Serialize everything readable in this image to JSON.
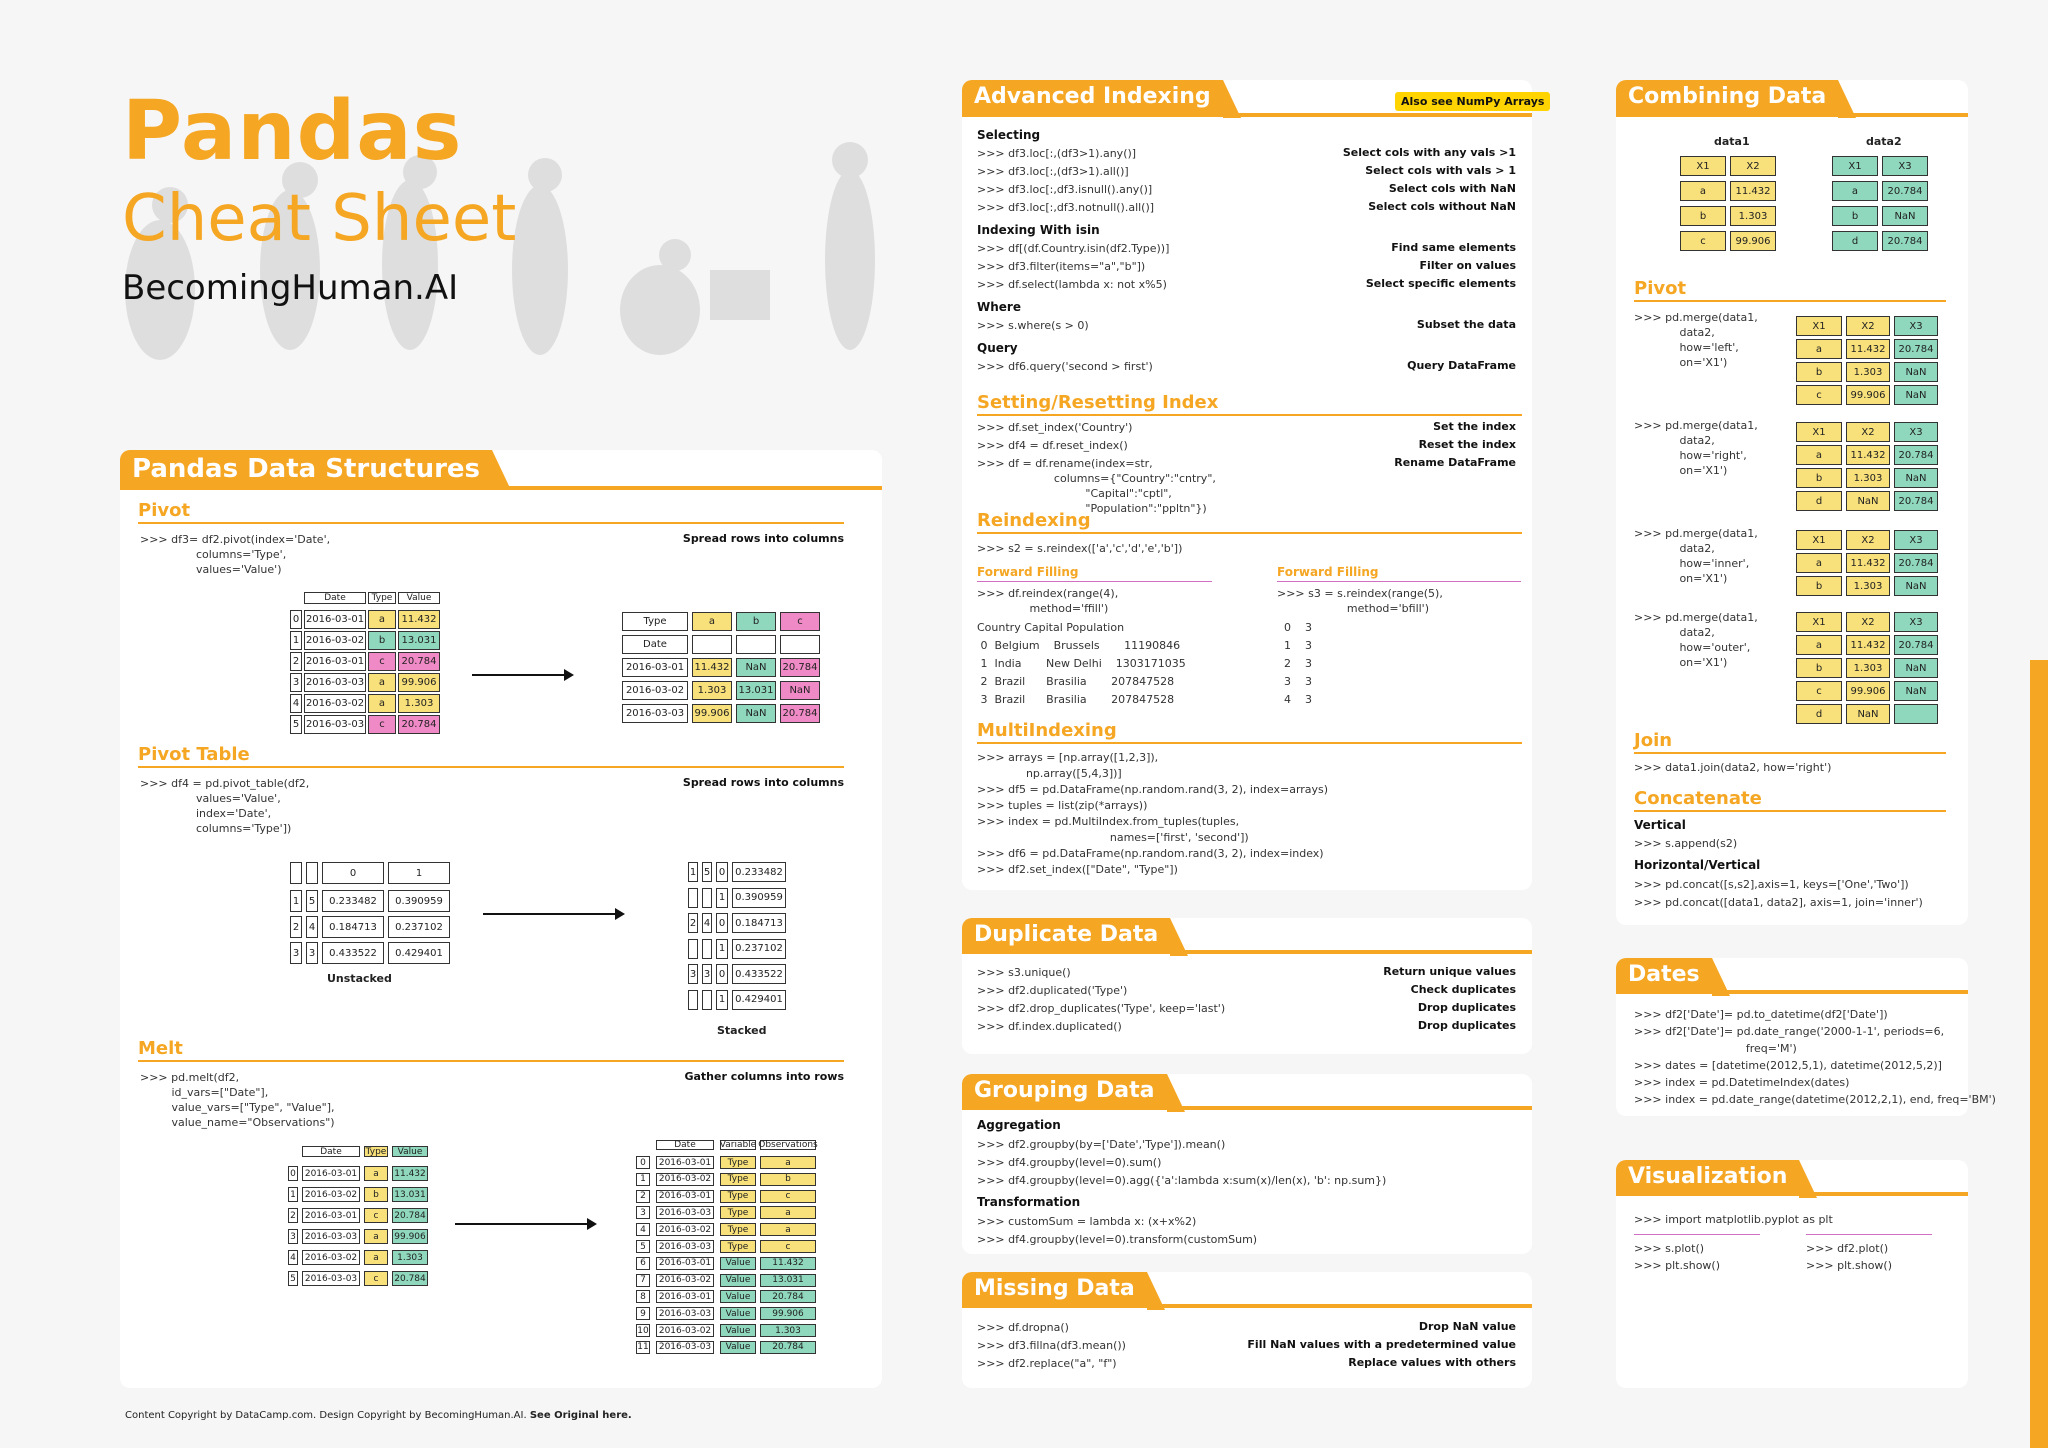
{
  "header": {
    "title": "Pandas",
    "subtitle": "Cheat Sheet",
    "brand": "BecomingHuman.AI"
  },
  "footer": {
    "text": "Content Copyright by DataCamp.com. Design Copyright by BecomingHuman.AI.",
    "link": "See Original here."
  },
  "data_structures": {
    "title": "Pandas Data Structures",
    "pivot": {
      "title": "Pivot",
      "code": ">>> df3= df2.pivot(index='Date',\n                columns='Type',\n                values='Value')",
      "desc": "Spread rows into columns",
      "left_headers": [
        "Date",
        "Type",
        "Value"
      ],
      "left_rows": [
        [
          "0",
          "2016-03-01",
          "a",
          "11.432"
        ],
        [
          "1",
          "2016-03-02",
          "b",
          "13.031"
        ],
        [
          "2",
          "2016-03-01",
          "c",
          "20.784"
        ],
        [
          "3",
          "2016-03-03",
          "a",
          "99.906"
        ],
        [
          "4",
          "2016-03-02",
          "a",
          "1.303"
        ],
        [
          "5",
          "2016-03-03",
          "c",
          "20.784"
        ]
      ],
      "right_header": [
        "Type",
        "a",
        "b",
        "c"
      ],
      "right_date": "Date",
      "right_rows": [
        [
          "2016-03-01",
          "11.432",
          "NaN",
          "20.784"
        ],
        [
          "2016-03-02",
          "1.303",
          "13.031",
          "NaN"
        ],
        [
          "2016-03-03",
          "99.906",
          "NaN",
          "20.784"
        ]
      ]
    },
    "pivot_table": {
      "title": "Pivot Table",
      "code": ">>> df4 = pd.pivot_table(df2,\n                values='Value',\n                index='Date',\n                columns='Type'])",
      "desc": "Spread rows into columns",
      "left_cols": [
        "0",
        "1"
      ],
      "left_rows": [
        [
          "1",
          "5",
          "0.233482",
          "0.390959"
        ],
        [
          "2",
          "4",
          "0.184713",
          "0.237102"
        ],
        [
          "3",
          "3",
          "0.433522",
          "0.429401"
        ]
      ],
      "left_caption": "Unstacked",
      "right_rows": [
        [
          "1",
          "5",
          "0",
          "0.233482"
        ],
        [
          "",
          "",
          "1",
          "0.390959"
        ],
        [
          "2",
          "4",
          "0",
          "0.184713"
        ],
        [
          "",
          "",
          "1",
          "0.237102"
        ],
        [
          "3",
          "3",
          "0",
          "0.433522"
        ],
        [
          "",
          "",
          "1",
          "0.429401"
        ]
      ],
      "right_caption": "Stacked"
    },
    "melt": {
      "title": "Melt",
      "code": ">>> pd.melt(df2,\n         id_vars=[\"Date\"],\n         value_vars=[\"Type\", \"Value\"],\n         value_name=\"Observations\")",
      "desc": "Gather columns into rows",
      "left_headers": [
        "Date",
        "Type",
        "Value"
      ],
      "left_rows": [
        [
          "0",
          "2016-03-01",
          "a",
          "11.432"
        ],
        [
          "1",
          "2016-03-02",
          "b",
          "13.031"
        ],
        [
          "2",
          "2016-03-01",
          "c",
          "20.784"
        ],
        [
          "3",
          "2016-03-03",
          "a",
          "99.906"
        ],
        [
          "4",
          "2016-03-02",
          "a",
          "1.303"
        ],
        [
          "5",
          "2016-03-03",
          "c",
          "20.784"
        ]
      ],
      "right_headers": [
        "Date",
        "Variable",
        "Observations"
      ],
      "right_rows": [
        [
          "0",
          "2016-03-01",
          "Type",
          "a"
        ],
        [
          "1",
          "2016-03-02",
          "Type",
          "b"
        ],
        [
          "2",
          "2016-03-01",
          "Type",
          "c"
        ],
        [
          "3",
          "2016-03-03",
          "Type",
          "a"
        ],
        [
          "4",
          "2016-03-02",
          "Type",
          "a"
        ],
        [
          "5",
          "2016-03-03",
          "Type",
          "c"
        ],
        [
          "6",
          "2016-03-01",
          "Value",
          "11.432"
        ],
        [
          "7",
          "2016-03-02",
          "Value",
          "13.031"
        ],
        [
          "8",
          "2016-03-01",
          "Value",
          "20.784"
        ],
        [
          "9",
          "2016-03-03",
          "Value",
          "99.906"
        ],
        [
          "10",
          "2016-03-02",
          "Value",
          "1.303"
        ],
        [
          "11",
          "2016-03-03",
          "Value",
          "20.784"
        ]
      ]
    }
  },
  "advanced_indexing": {
    "title": "Advanced Indexing",
    "badge": "Also see NumPy Arrays",
    "selecting": "Selecting",
    "sel_rows": [
      [
        ">>> df3.loc[:,(df3>1).any()]",
        "Select cols with any vals >1"
      ],
      [
        ">>> df3.loc[:,(df3>1).all()]",
        "Select cols with vals > 1"
      ],
      [
        ">>> df3.loc[:,df3.isnull().any()]",
        "Select cols with NaN"
      ],
      [
        ">>> df3.loc[:,df3.notnull().all()]",
        "Select cols without NaN"
      ]
    ],
    "isin": "Indexing With isin",
    "isin_rows": [
      [
        ">>> df[(df.Country.isin(df2.Type))]",
        "Find same elements"
      ],
      [
        ">>> df3.filter(items=\"a\",\"b\"])",
        "Filter on values"
      ],
      [
        ">>> df.select(lambda x: not x%5)",
        "Select specific elements"
      ]
    ],
    "where": "Where",
    "where_rows": [
      [
        ">>> s.where(s > 0)",
        "Subset the data"
      ]
    ],
    "query": "Query",
    "query_rows": [
      [
        ">>> df6.query('second > first')",
        "Query DataFrame"
      ]
    ],
    "setreset": "Setting/Resetting Index",
    "set_rows": [
      [
        ">>> df.set_index('Country')",
        "Set the index"
      ],
      [
        ">>> df4 = df.reset_index()",
        "Reset the index"
      ],
      [
        ">>> df = df.rename(index=str,\n                      columns={\"Country\":\"cntry\",\n                               \"Capital\":\"cptl\",\n                               \"Population\":\"ppltn\"})",
        "Rename DataFrame"
      ]
    ],
    "reindexing": "Reindexing",
    "reindex_code": ">>> s2 = s.reindex(['a','c','d','e','b'])",
    "ff1": "Forward Filling",
    "ff1_code": ">>> df.reindex(range(4),\n               method='ffill')",
    "ff1_table": "Country Capital Population\n 0  Belgium    Brussels       11190846\n 1  India       New Delhi    1303171035\n 2  Brazil      Brasilia       207847528\n 3  Brazil      Brasilia       207847528",
    "ff2": "Forward Filling",
    "ff2_code": ">>> s3 = s.reindex(range(5),\n                    method='bfill')",
    "ff2_table": "  0    3\n  1    3\n  2    3\n  3    3\n  4    3",
    "multiindexing": "MultiIndexing",
    "multi_code": ">>> arrays = [np.array([1,2,3]),\n              np.array([5,4,3])]\n>>> df5 = pd.DataFrame(np.random.rand(3, 2), index=arrays)\n>>> tuples = list(zip(*arrays))\n>>> index = pd.MultiIndex.from_tuples(tuples,\n                                      names=['first', 'second'])\n>>> df6 = pd.DataFrame(np.random.rand(3, 2), index=index)\n>>> df2.set_index([\"Date\", \"Type\"])"
  },
  "duplicate": {
    "title": "Duplicate Data",
    "rows": [
      [
        ">>> s3.unique()",
        "Return unique values"
      ],
      [
        ">>> df2.duplicated('Type')",
        "Check duplicates"
      ],
      [
        ">>> df2.drop_duplicates('Type', keep='last')",
        "Drop duplicates"
      ],
      [
        ">>> df.index.duplicated()",
        "Drop duplicates"
      ]
    ]
  },
  "grouping": {
    "title": "Grouping Data",
    "agg": "Aggregation",
    "agg_code": ">>> df2.groupby(by=['Date','Type']).mean()\n>>> df4.groupby(level=0).sum()\n>>> df4.groupby(level=0).agg({'a':lambda x:sum(x)/len(x), 'b': np.sum})",
    "trans": "Transformation",
    "trans_code": ">>> customSum = lambda x: (x+x%2)\n>>> df4.groupby(level=0).transform(customSum)"
  },
  "missing": {
    "title": "Missing Data",
    "rows": [
      [
        ">>> df.dropna()",
        "Drop NaN value"
      ],
      [
        ">>> df3.fillna(df3.mean())",
        "Fill NaN values with a predetermined value"
      ],
      [
        ">>> df2.replace(\"a\", \"f\")",
        "Replace values with others"
      ]
    ]
  },
  "combining": {
    "title": "Combining Data",
    "data1": "data1",
    "data2": "data2",
    "d1_head": [
      "X1",
      "X2"
    ],
    "d1_rows": [
      [
        "a",
        "11.432"
      ],
      [
        "b",
        "1.303"
      ],
      [
        "c",
        "99.906"
      ]
    ],
    "d2_head": [
      "X1",
      "X3"
    ],
    "d2_rows": [
      [
        "a",
        "20.784"
      ],
      [
        "b",
        "NaN"
      ],
      [
        "d",
        "20.784"
      ]
    ],
    "pivot": "Pivot",
    "merges": [
      {
        "code": ">>> pd.merge(data1,\n             data2,\n             how='left',\n             on='X1')",
        "rows": [
          [
            "a",
            "11.432",
            "20.784"
          ],
          [
            "b",
            "1.303",
            "NaN"
          ],
          [
            "c",
            "99.906",
            "NaN"
          ]
        ]
      },
      {
        "code": ">>> pd.merge(data1,\n             data2,\n             how='right',\n             on='X1')",
        "rows": [
          [
            "a",
            "11.432",
            "20.784"
          ],
          [
            "b",
            "1.303",
            "NaN"
          ],
          [
            "d",
            "NaN",
            "20.784"
          ]
        ]
      },
      {
        "code": ">>> pd.merge(data1,\n             data2,\n             how='inner',\n             on='X1')",
        "rows": [
          [
            "a",
            "11.432",
            "20.784"
          ],
          [
            "b",
            "1.303",
            "NaN"
          ]
        ]
      },
      {
        "code": ">>> pd.merge(data1,\n             data2,\n             how='outer',\n             on='X1')",
        "rows": [
          [
            "a",
            "11.432",
            "20.784"
          ],
          [
            "b",
            "1.303",
            "NaN"
          ],
          [
            "c",
            "99.906",
            "NaN"
          ],
          [
            "d",
            "NaN",
            ""
          ]
        ]
      }
    ],
    "merge_head": [
      "X1",
      "X2",
      "X3"
    ],
    "join": "Join",
    "join_code": ">>> data1.join(data2, how='right')",
    "concat": "Concatenate",
    "vertical": "Vertical",
    "vertical_code": ">>> s.append(s2)",
    "hv": "Horizontal/Vertical",
    "hv_code": ">>> pd.concat([s,s2],axis=1, keys=['One','Two'])\n>>> pd.concat([data1, data2], axis=1, join='inner')"
  },
  "dates": {
    "title": "Dates",
    "code": ">>> df2['Date']= pd.to_datetime(df2['Date'])\n>>> df2['Date']= pd.date_range('2000-1-1', periods=6,\n                                freq='M')\n>>> dates = [datetime(2012,5,1), datetime(2012,5,2)]\n>>> index = pd.DatetimeIndex(dates)\n>>> index = pd.date_range(datetime(2012,2,1), end, freq='BM')"
  },
  "visualization": {
    "title": "Visualization",
    "import": ">>> import matplotlib.pyplot as plt",
    "left": ">>> s.plot()\n>>> plt.show()",
    "right": ">>> df2.plot()\n>>> plt.show()"
  }
}
